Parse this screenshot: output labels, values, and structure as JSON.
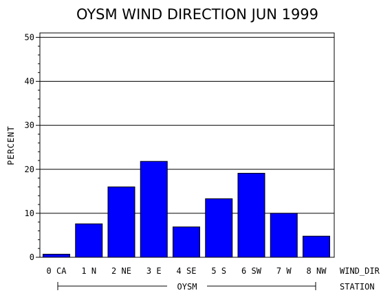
{
  "chart_data": {
    "type": "bar",
    "title": "OYSM WIND DIRECTION JUN 1999",
    "ylabel": "PERCENT",
    "xlabel": "WIND_DIR",
    "group_label": "STATION",
    "group_name": "OYSM",
    "categories": [
      "0 CA",
      "1 N",
      "2 NE",
      "3 E",
      "4 SE",
      "5 S",
      "6 SW",
      "7 W",
      "8 NW"
    ],
    "values": [
      0.7,
      7.6,
      16.0,
      21.8,
      6.9,
      13.3,
      19.1,
      10.0,
      4.8
    ],
    "ylim": [
      0,
      51
    ],
    "yticks": [
      0,
      10,
      20,
      30,
      40,
      50
    ],
    "gridlines": [
      10,
      20,
      30,
      40,
      50
    ],
    "grid": true,
    "bar_color": "#0000ff"
  }
}
